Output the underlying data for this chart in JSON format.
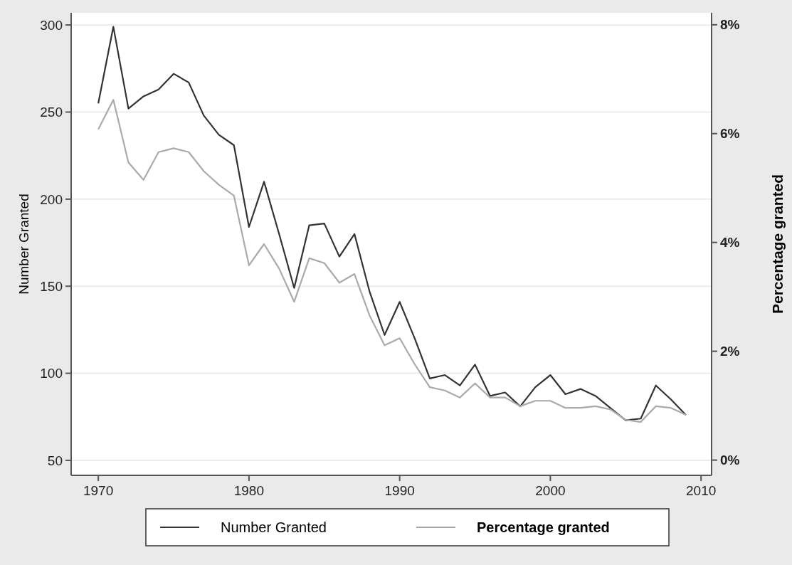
{
  "chart_data": {
    "type": "line",
    "xlabel": null,
    "ylabel": "Number Granted",
    "y2label": "Percentage granted",
    "x": [
      1970,
      1971,
      1972,
      1973,
      1974,
      1975,
      1976,
      1977,
      1978,
      1979,
      1980,
      1981,
      1982,
      1983,
      1984,
      1985,
      1986,
      1987,
      1988,
      1989,
      1990,
      1991,
      1992,
      1993,
      1994,
      1995,
      1996,
      1997,
      1998,
      1999,
      2000,
      2001,
      2002,
      2003,
      2004,
      2005,
      2006,
      2007,
      2008,
      2009
    ],
    "series": [
      {
        "name": "Number Granted",
        "color": "#333333",
        "values": [
          255,
          299,
          252,
          259,
          263,
          272,
          267,
          248,
          237,
          231,
          184,
          210,
          180,
          149,
          185,
          186,
          167,
          180,
          147,
          122,
          141,
          120,
          97,
          99,
          93,
          105,
          87,
          89,
          81,
          92,
          99,
          88,
          91,
          87,
          80,
          73,
          74,
          93,
          85,
          76
        ]
      },
      {
        "name": "Percentage granted",
        "color": "#aaaaaa",
        "axis": "y2",
        "values": [
          6.08,
          6.62,
          5.47,
          5.15,
          5.66,
          5.73,
          5.66,
          5.31,
          5.06,
          4.86,
          3.58,
          3.97,
          3.52,
          2.91,
          3.71,
          3.62,
          3.26,
          3.42,
          2.66,
          2.11,
          2.24,
          1.76,
          1.34,
          1.28,
          1.15,
          1.41,
          1.15,
          1.15,
          0.99,
          1.09,
          1.09,
          0.96,
          0.96,
          0.99,
          0.93,
          0.74,
          0.7,
          0.99,
          0.96,
          0.83
        ]
      }
    ],
    "xlim": [
      1968.2,
      2010.7
    ],
    "xticks": [
      1970,
      1980,
      1990,
      2000,
      2010
    ],
    "ylim": [
      41.4,
      307
    ],
    "yticks": [
      50,
      100,
      150,
      200,
      250,
      300
    ],
    "y2lim": [
      -0.28,
      8.22
    ],
    "y2ticks": [
      {
        "value": 0,
        "label": "0%"
      },
      {
        "value": 2,
        "label": "2%"
      },
      {
        "value": 4,
        "label": "4%"
      },
      {
        "value": 6,
        "label": "6%"
      },
      {
        "value": 8,
        "label": "8%"
      }
    ],
    "grid": "y",
    "legend": "bottom",
    "line_style": "solid",
    "marker": "none"
  }
}
